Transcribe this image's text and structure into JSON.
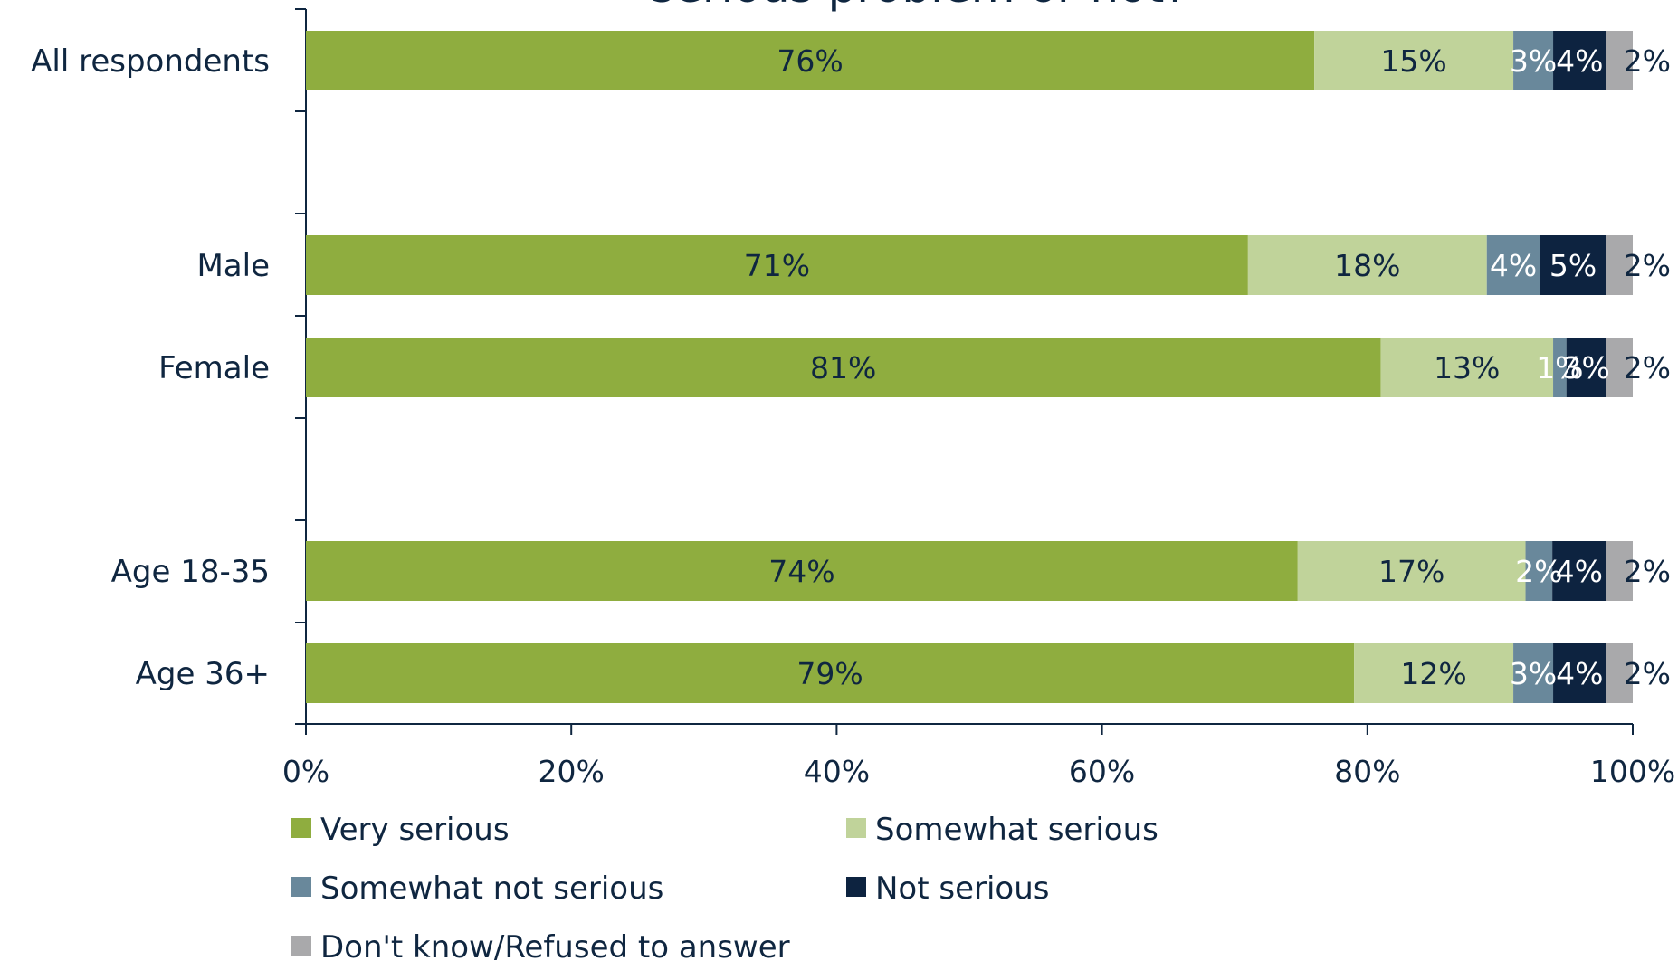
{
  "chart_data": {
    "type": "bar",
    "orientation": "horizontal",
    "stacked": true,
    "title": "serious problem or not?",
    "xlim": [
      0,
      100
    ],
    "x_ticks": [
      "0%",
      "20%",
      "40%",
      "60%",
      "80%",
      "100%"
    ],
    "categories": [
      "All respondents",
      "Male",
      "Female",
      "Age 18-35",
      "Age 36+"
    ],
    "category_groups": [
      [
        "All respondents"
      ],
      [
        "Male",
        "Female"
      ],
      [
        "Age 18-35",
        "Age 36+"
      ]
    ],
    "series": [
      {
        "name": "Very serious",
        "color": "#8fad3f",
        "label_color": "#0f2640",
        "values": [
          76,
          71,
          81,
          74,
          79
        ],
        "labels": [
          "76%",
          "71%",
          "81%",
          "74%",
          "79%"
        ]
      },
      {
        "name": "Somewhat serious",
        "color": "#c0d39a",
        "label_color": "#0f2640",
        "values": [
          15,
          18,
          13,
          17,
          12
        ],
        "labels": [
          "15%",
          "18%",
          "13%",
          "17%",
          "12%"
        ]
      },
      {
        "name": "Somewhat not serious",
        "color": "#69889b",
        "label_color": "#ffffff",
        "values": [
          3,
          4,
          1,
          2,
          3
        ],
        "labels": [
          "3%",
          "4%",
          "1%",
          "2%",
          "3%"
        ]
      },
      {
        "name": "Not serious",
        "color": "#0d2340",
        "label_color": "#ffffff",
        "values": [
          4,
          5,
          3,
          4,
          4
        ],
        "labels": [
          "4%",
          "5%",
          "3%",
          "4%",
          "4%"
        ]
      },
      {
        "name": "Don't know/Refused to answer",
        "color": "#a9a9ab",
        "label_color": "#0f2640",
        "values": [
          2,
          2,
          2,
          2,
          2
        ],
        "labels": [
          "2%",
          "2%",
          "2%",
          "2%",
          "2%"
        ]
      }
    ],
    "legend_position": "bottom",
    "grid": false
  }
}
